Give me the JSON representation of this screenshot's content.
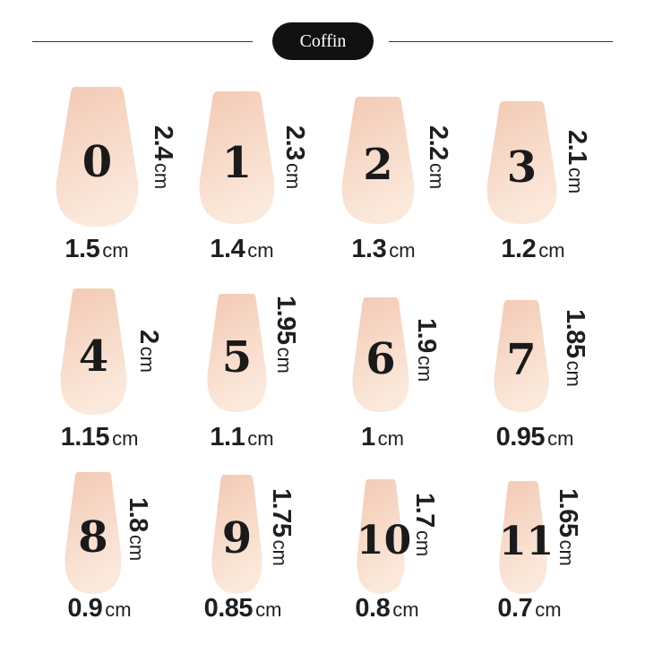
{
  "title": "Coffin",
  "colors": {
    "nail_top": "#f3c9b3",
    "nail_bottom": "#fbe9dc",
    "pill": "#111111"
  },
  "unit": "cm",
  "sizes": [
    {
      "number": "0",
      "length": "2.4",
      "width": "1.5"
    },
    {
      "number": "1",
      "length": "2.3",
      "width": "1.4"
    },
    {
      "number": "2",
      "length": "2.2",
      "width": "1.3"
    },
    {
      "number": "3",
      "length": "2.1",
      "width": "1.2"
    },
    {
      "number": "4",
      "length": "2",
      "width": "1.15"
    },
    {
      "number": "5",
      "length": "1.95",
      "width": "1.1"
    },
    {
      "number": "6",
      "length": "1.9",
      "width": "1"
    },
    {
      "number": "7",
      "length": "1.85",
      "width": "0.95"
    },
    {
      "number": "8",
      "length": "1.8",
      "width": "0.9"
    },
    {
      "number": "9",
      "length": "1.75",
      "width": "0.85"
    },
    {
      "number": "10",
      "length": "1.7",
      "width": "0.8"
    },
    {
      "number": "11",
      "length": "1.65",
      "width": "0.7"
    }
  ]
}
